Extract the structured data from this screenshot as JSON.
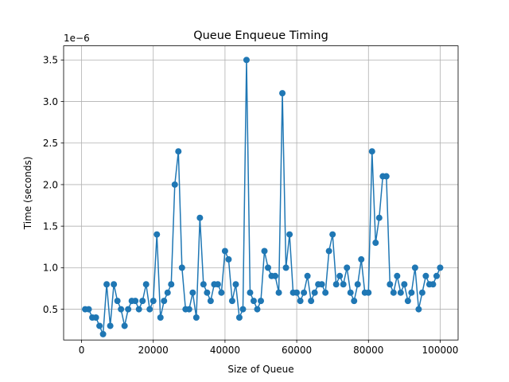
{
  "chart_data": {
    "type": "line",
    "title": "Queue Enqueue Timing",
    "xlabel": "Size of Queue",
    "ylabel": "Time (seconds)",
    "y_offset_text": "1e−6",
    "y_scale_factor": 1e-06,
    "xlim": [
      -5000,
      105000
    ],
    "ylim": [
      0.13,
      3.67
    ],
    "x_ticks": [
      0,
      20000,
      40000,
      60000,
      80000,
      100000
    ],
    "x_tick_labels": [
      "0",
      "20000",
      "40000",
      "60000",
      "80000",
      "100000"
    ],
    "y_ticks": [
      0.5,
      1.0,
      1.5,
      2.0,
      2.5,
      3.0,
      3.5
    ],
    "y_tick_labels": [
      "0.5",
      "1.0",
      "1.5",
      "2.0",
      "2.5",
      "3.0",
      "3.5"
    ],
    "grid": true,
    "color": "#1f77b4",
    "marker": "circle",
    "series": [
      {
        "x": [
          1000,
          2000,
          3000,
          4000,
          5000,
          6000,
          7000,
          8000,
          9000,
          10000,
          11000,
          12000,
          13000,
          14000,
          15000,
          16000,
          17000,
          18000,
          19000,
          20000,
          21000,
          22000,
          23000,
          24000,
          25000,
          26000,
          27000,
          28000,
          29000,
          30000,
          31000,
          32000,
          33000,
          34000,
          35000,
          36000,
          37000,
          38000,
          39000,
          40000,
          41000,
          42000,
          43000,
          44000,
          45000,
          46000,
          47000,
          48000,
          49000,
          50000,
          51000,
          52000,
          53000,
          54000,
          55000,
          56000,
          57000,
          58000,
          59000,
          60000,
          61000,
          62000,
          63000,
          64000,
          65000,
          66000,
          67000,
          68000,
          69000,
          70000,
          71000,
          72000,
          73000,
          74000,
          75000,
          76000,
          77000,
          78000,
          79000,
          80000,
          81000,
          82000,
          83000,
          84000,
          85000,
          86000,
          87000,
          88000,
          89000,
          90000,
          91000,
          92000,
          93000,
          94000,
          95000,
          96000,
          97000,
          98000,
          99000,
          100000
        ],
        "y": [
          0.5,
          0.5,
          0.4,
          0.4,
          0.3,
          0.2,
          0.8,
          0.3,
          0.8,
          0.6,
          0.5,
          0.3,
          0.5,
          0.6,
          0.6,
          0.5,
          0.6,
          0.8,
          0.5,
          0.6,
          1.4,
          0.4,
          0.6,
          0.7,
          0.8,
          2.0,
          2.4,
          1.0,
          0.5,
          0.5,
          0.7,
          0.4,
          1.6,
          0.8,
          0.7,
          0.6,
          0.8,
          0.8,
          0.7,
          1.2,
          1.1,
          0.6,
          0.8,
          0.4,
          0.5,
          3.5,
          0.7,
          0.6,
          0.5,
          0.6,
          1.2,
          1.0,
          0.9,
          0.9,
          0.7,
          3.1,
          1.0,
          1.4,
          0.7,
          0.7,
          0.6,
          0.7,
          0.9,
          0.6,
          0.7,
          0.8,
          0.8,
          0.7,
          1.2,
          1.4,
          0.8,
          0.9,
          0.8,
          1.0,
          0.7,
          0.6,
          0.8,
          1.1,
          0.7,
          0.7,
          2.4,
          1.3,
          1.6,
          2.1,
          2.1,
          0.8,
          0.7,
          0.9,
          0.7,
          0.8,
          0.6,
          0.7,
          1.0,
          0.5,
          0.7,
          0.9,
          0.8,
          0.8,
          0.9,
          1.0
        ]
      }
    ]
  }
}
